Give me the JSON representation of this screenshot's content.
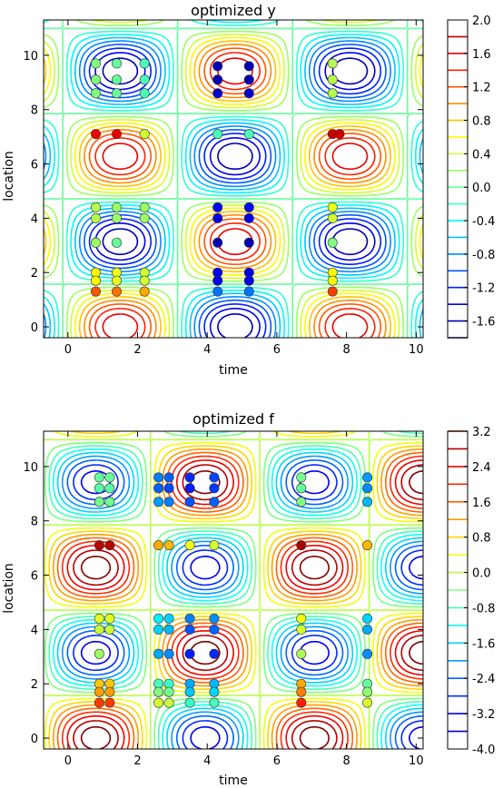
{
  "chart_data": [
    {
      "type": "contour",
      "title": "optimized y",
      "xlabel": "time",
      "ylabel": "location",
      "xlim": [
        -0.7,
        10.2
      ],
      "ylim": [
        -0.4,
        11.3
      ],
      "xticks": [
        0,
        2,
        4,
        6,
        8,
        10
      ],
      "yticks": [
        0,
        2,
        4,
        6,
        8,
        10
      ],
      "field": {
        "amplitude": 1.8,
        "x_period": 6.6,
        "x_phase": 1.5,
        "y_period": 6.28,
        "y_phase": 0.0
      },
      "contour_levels": [
        -1.8,
        -1.6,
        -1.4,
        -1.2,
        -1.0,
        -0.8,
        -0.6,
        -0.4,
        -0.2,
        0.0,
        0.2,
        0.4,
        0.6,
        0.8,
        1.0,
        1.2,
        1.4,
        1.6,
        1.8
      ],
      "colorbar": {
        "min": -1.8,
        "max": 2.0,
        "labels": [
          "2.0",
          "1.6",
          "1.2",
          "0.8",
          "0.4",
          "0.0",
          "-0.4",
          "-0.8",
          "-1.2",
          "-1.6"
        ],
        "label_values": [
          2.0,
          1.6,
          1.2,
          0.8,
          0.4,
          0.0,
          -0.4,
          -0.8,
          -1.2,
          -1.6
        ]
      },
      "points": [
        {
          "x": 0.8,
          "y": 9.7,
          "v": 0.1
        },
        {
          "x": 0.8,
          "y": 9.1,
          "v": 0.1
        },
        {
          "x": 0.8,
          "y": 8.6,
          "v": 0.1
        },
        {
          "x": 1.4,
          "y": 9.7,
          "v": 0.0
        },
        {
          "x": 1.4,
          "y": 9.1,
          "v": 0.0
        },
        {
          "x": 1.4,
          "y": 8.6,
          "v": 0.0
        },
        {
          "x": 2.2,
          "y": 9.7,
          "v": -0.1
        },
        {
          "x": 2.2,
          "y": 9.1,
          "v": -0.1
        },
        {
          "x": 2.2,
          "y": 8.6,
          "v": -0.1
        },
        {
          "x": 0.8,
          "y": 7.1,
          "v": 1.6
        },
        {
          "x": 1.4,
          "y": 7.1,
          "v": 1.6
        },
        {
          "x": 2.2,
          "y": 7.1,
          "v": 0.4
        },
        {
          "x": 0.8,
          "y": 4.4,
          "v": 0.3
        },
        {
          "x": 0.8,
          "y": 4.0,
          "v": 0.3
        },
        {
          "x": 0.8,
          "y": 3.1,
          "v": 0.2
        },
        {
          "x": 1.4,
          "y": 4.4,
          "v": 0.2
        },
        {
          "x": 1.4,
          "y": 4.0,
          "v": 0.2
        },
        {
          "x": 1.4,
          "y": 3.1,
          "v": 0.0
        },
        {
          "x": 2.2,
          "y": 4.4,
          "v": 0.2
        },
        {
          "x": 2.2,
          "y": 4.0,
          "v": 0.2
        },
        {
          "x": 0.8,
          "y": 2.0,
          "v": 0.6
        },
        {
          "x": 0.8,
          "y": 1.7,
          "v": 0.6
        },
        {
          "x": 0.8,
          "y": 1.3,
          "v": 1.2
        },
        {
          "x": 1.4,
          "y": 2.0,
          "v": 0.5
        },
        {
          "x": 1.4,
          "y": 1.7,
          "v": 0.5
        },
        {
          "x": 1.4,
          "y": 1.3,
          "v": 1.1
        },
        {
          "x": 2.2,
          "y": 2.0,
          "v": 0.4
        },
        {
          "x": 2.2,
          "y": 1.7,
          "v": 0.4
        },
        {
          "x": 2.2,
          "y": 1.3,
          "v": 0.9
        },
        {
          "x": 4.3,
          "y": 9.6,
          "v": -1.6
        },
        {
          "x": 4.3,
          "y": 9.1,
          "v": -1.6
        },
        {
          "x": 4.3,
          "y": 8.6,
          "v": -1.5
        },
        {
          "x": 5.2,
          "y": 9.6,
          "v": -1.6
        },
        {
          "x": 5.2,
          "y": 9.1,
          "v": -1.6
        },
        {
          "x": 5.2,
          "y": 8.6,
          "v": -1.5
        },
        {
          "x": 4.3,
          "y": 7.1,
          "v": -0.1
        },
        {
          "x": 5.2,
          "y": 7.1,
          "v": -0.1
        },
        {
          "x": 4.3,
          "y": 4.4,
          "v": -1.3
        },
        {
          "x": 4.3,
          "y": 4.0,
          "v": -1.4
        },
        {
          "x": 4.3,
          "y": 3.1,
          "v": -1.6
        },
        {
          "x": 5.2,
          "y": 4.4,
          "v": -1.3
        },
        {
          "x": 5.2,
          "y": 4.0,
          "v": -1.4
        },
        {
          "x": 5.2,
          "y": 3.1,
          "v": -1.6
        },
        {
          "x": 4.3,
          "y": 2.0,
          "v": -1.4
        },
        {
          "x": 4.3,
          "y": 1.7,
          "v": -1.4
        },
        {
          "x": 4.3,
          "y": 1.3,
          "v": -0.9
        },
        {
          "x": 5.2,
          "y": 2.0,
          "v": -1.4
        },
        {
          "x": 5.2,
          "y": 1.7,
          "v": -1.4
        },
        {
          "x": 5.2,
          "y": 1.3,
          "v": -0.9
        },
        {
          "x": 7.6,
          "y": 9.7,
          "v": 0.3
        },
        {
          "x": 7.6,
          "y": 9.1,
          "v": 0.3
        },
        {
          "x": 7.6,
          "y": 8.6,
          "v": 0.3
        },
        {
          "x": 7.6,
          "y": 7.1,
          "v": 1.7
        },
        {
          "x": 7.8,
          "y": 7.1,
          "v": 1.7
        },
        {
          "x": 7.6,
          "y": 4.4,
          "v": 0.5
        },
        {
          "x": 7.6,
          "y": 4.0,
          "v": 0.4
        },
        {
          "x": 7.6,
          "y": 3.1,
          "v": 0.1
        },
        {
          "x": 7.6,
          "y": 2.0,
          "v": 0.6
        },
        {
          "x": 7.6,
          "y": 1.7,
          "v": 0.6
        },
        {
          "x": 7.6,
          "y": 1.3,
          "v": 1.3
        }
      ]
    },
    {
      "type": "contour",
      "title": "optimized f",
      "xlabel": "time",
      "ylabel": "location",
      "xlim": [
        -0.7,
        10.2
      ],
      "ylim": [
        -0.4,
        11.3
      ],
      "xticks": [
        0,
        2,
        4,
        6,
        8,
        10
      ],
      "yticks": [
        0,
        2,
        4,
        6,
        8,
        10
      ],
      "field": {
        "amplitude": 3.5,
        "x_period": 6.28,
        "x_phase": 0.8,
        "y_period": 6.28,
        "y_phase": 0.0
      },
      "contour_levels": [
        -3.6,
        -3.2,
        -2.8,
        -2.4,
        -2.0,
        -1.6,
        -1.2,
        -0.8,
        -0.4,
        0.0,
        0.4,
        0.8,
        1.2,
        1.6,
        2.0,
        2.4,
        2.8,
        3.2
      ],
      "colorbar": {
        "min": -4.0,
        "max": 3.2,
        "labels": [
          "3.2",
          "2.4",
          "1.6",
          "0.8",
          "0.0",
          "-0.8",
          "-1.6",
          "-2.4",
          "-3.2",
          "-4.0"
        ],
        "label_values": [
          3.2,
          2.4,
          1.6,
          0.8,
          0.0,
          -0.8,
          -1.6,
          -2.4,
          -3.2,
          -4.0
        ]
      },
      "points": [
        {
          "x": 0.9,
          "y": 9.6,
          "v": -0.6
        },
        {
          "x": 0.9,
          "y": 9.2,
          "v": -0.7
        },
        {
          "x": 0.9,
          "y": 8.7,
          "v": -0.5
        },
        {
          "x": 1.2,
          "y": 9.6,
          "v": -0.6
        },
        {
          "x": 1.2,
          "y": 9.2,
          "v": -0.7
        },
        {
          "x": 1.2,
          "y": 8.7,
          "v": -0.5
        },
        {
          "x": 2.6,
          "y": 9.6,
          "v": -2.2
        },
        {
          "x": 2.6,
          "y": 9.2,
          "v": -2.4
        },
        {
          "x": 2.6,
          "y": 8.7,
          "v": -2.0
        },
        {
          "x": 2.9,
          "y": 9.6,
          "v": -2.4
        },
        {
          "x": 2.9,
          "y": 9.2,
          "v": -2.6
        },
        {
          "x": 2.9,
          "y": 8.7,
          "v": -2.2
        },
        {
          "x": 3.5,
          "y": 9.6,
          "v": -2.8
        },
        {
          "x": 3.5,
          "y": 9.2,
          "v": -2.9
        },
        {
          "x": 3.5,
          "y": 8.7,
          "v": -2.5
        },
        {
          "x": 4.2,
          "y": 9.6,
          "v": -2.6
        },
        {
          "x": 4.2,
          "y": 9.2,
          "v": -2.7
        },
        {
          "x": 4.2,
          "y": 8.7,
          "v": -2.4
        },
        {
          "x": 6.7,
          "y": 9.6,
          "v": -0.5
        },
        {
          "x": 6.7,
          "y": 9.2,
          "v": -0.6
        },
        {
          "x": 6.7,
          "y": 8.7,
          "v": -0.4
        },
        {
          "x": 8.6,
          "y": 9.6,
          "v": -2.0
        },
        {
          "x": 8.6,
          "y": 9.2,
          "v": -2.1
        },
        {
          "x": 8.6,
          "y": 8.7,
          "v": -1.8
        },
        {
          "x": 0.9,
          "y": 7.1,
          "v": 2.8
        },
        {
          "x": 1.2,
          "y": 7.1,
          "v": 2.8
        },
        {
          "x": 2.6,
          "y": 7.1,
          "v": 1.1
        },
        {
          "x": 2.9,
          "y": 7.1,
          "v": 1.0
        },
        {
          "x": 3.5,
          "y": 7.1,
          "v": 0.4
        },
        {
          "x": 4.2,
          "y": 7.1,
          "v": 0.2
        },
        {
          "x": 6.7,
          "y": 7.1,
          "v": 2.9
        },
        {
          "x": 8.6,
          "y": 7.1,
          "v": 1.0
        },
        {
          "x": 0.9,
          "y": 4.4,
          "v": 0.3
        },
        {
          "x": 0.9,
          "y": 4.0,
          "v": 0.1
        },
        {
          "x": 0.9,
          "y": 3.1,
          "v": -0.2
        },
        {
          "x": 1.2,
          "y": 4.4,
          "v": 0.3
        },
        {
          "x": 1.2,
          "y": 4.0,
          "v": 0.1
        },
        {
          "x": 2.6,
          "y": 4.4,
          "v": -1.4
        },
        {
          "x": 2.6,
          "y": 4.0,
          "v": -1.6
        },
        {
          "x": 2.6,
          "y": 3.1,
          "v": -1.9
        },
        {
          "x": 2.9,
          "y": 4.4,
          "v": -1.6
        },
        {
          "x": 2.9,
          "y": 4.0,
          "v": -1.8
        },
        {
          "x": 2.9,
          "y": 3.1,
          "v": -2.1
        },
        {
          "x": 3.5,
          "y": 4.4,
          "v": -2.2
        },
        {
          "x": 3.5,
          "y": 4.0,
          "v": -2.5
        },
        {
          "x": 3.5,
          "y": 3.1,
          "v": -2.9
        },
        {
          "x": 4.2,
          "y": 4.4,
          "v": -2.1
        },
        {
          "x": 4.2,
          "y": 4.0,
          "v": -2.4
        },
        {
          "x": 4.2,
          "y": 3.1,
          "v": -2.8
        },
        {
          "x": 6.7,
          "y": 4.4,
          "v": 0.4
        },
        {
          "x": 6.7,
          "y": 4.0,
          "v": 0.2
        },
        {
          "x": 6.7,
          "y": 3.1,
          "v": -0.1
        },
        {
          "x": 8.6,
          "y": 4.4,
          "v": -1.6
        },
        {
          "x": 8.6,
          "y": 4.0,
          "v": -1.9
        },
        {
          "x": 8.6,
          "y": 3.1,
          "v": -2.1
        },
        {
          "x": 0.9,
          "y": 2.0,
          "v": 0.9
        },
        {
          "x": 0.9,
          "y": 1.7,
          "v": 1.2
        },
        {
          "x": 0.9,
          "y": 1.3,
          "v": 1.9
        },
        {
          "x": 1.2,
          "y": 2.0,
          "v": 0.9
        },
        {
          "x": 1.2,
          "y": 1.7,
          "v": 1.2
        },
        {
          "x": 1.2,
          "y": 1.3,
          "v": 1.9
        },
        {
          "x": 2.6,
          "y": 2.0,
          "v": -0.8
        },
        {
          "x": 2.6,
          "y": 1.7,
          "v": -0.4
        },
        {
          "x": 2.6,
          "y": 1.3,
          "v": 0.2
        },
        {
          "x": 2.9,
          "y": 2.0,
          "v": -0.9
        },
        {
          "x": 2.9,
          "y": 1.7,
          "v": -0.5
        },
        {
          "x": 2.9,
          "y": 1.3,
          "v": 0.1
        },
        {
          "x": 3.5,
          "y": 2.0,
          "v": -1.9
        },
        {
          "x": 3.5,
          "y": 1.7,
          "v": -1.7
        },
        {
          "x": 3.5,
          "y": 1.3,
          "v": -0.9
        },
        {
          "x": 4.2,
          "y": 2.0,
          "v": -1.8
        },
        {
          "x": 4.2,
          "y": 1.7,
          "v": -1.6
        },
        {
          "x": 4.2,
          "y": 1.3,
          "v": -0.8
        },
        {
          "x": 6.7,
          "y": 2.0,
          "v": 1.1
        },
        {
          "x": 6.7,
          "y": 1.7,
          "v": 1.4
        },
        {
          "x": 6.7,
          "y": 1.3,
          "v": 2.1
        },
        {
          "x": 8.6,
          "y": 2.0,
          "v": -0.6
        },
        {
          "x": 8.6,
          "y": 1.7,
          "v": -0.3
        },
        {
          "x": 8.6,
          "y": 1.3,
          "v": 0.2
        }
      ]
    }
  ]
}
